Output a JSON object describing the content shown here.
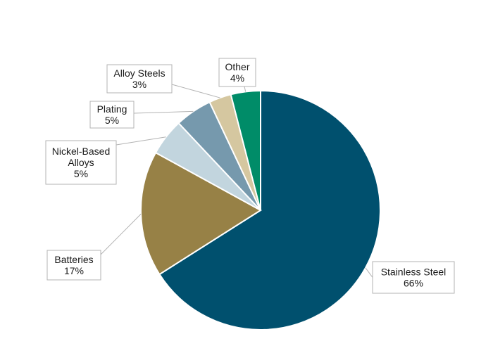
{
  "chart_data": {
    "type": "pie",
    "title": "",
    "start_angle": "12 o'clock",
    "direction": "clockwise",
    "slices": [
      {
        "label": "Stainless Steel",
        "value": 66,
        "value_label": "66%",
        "color": "#00506e"
      },
      {
        "label": "Batteries",
        "value": 17,
        "value_label": "17%",
        "color": "#978146"
      },
      {
        "label": "Nickel-Based Alloys",
        "value": 5,
        "value_label": "5%",
        "color": "#c2d5de"
      },
      {
        "label": "Plating",
        "value": 5,
        "value_label": "5%",
        "color": "#7699ad"
      },
      {
        "label": "Alloy Steels",
        "value": 3,
        "value_label": "3%",
        "color": "#d5c7a0"
      },
      {
        "label": "Other",
        "value": 4,
        "value_label": "4%",
        "color": "#008c68"
      }
    ]
  }
}
